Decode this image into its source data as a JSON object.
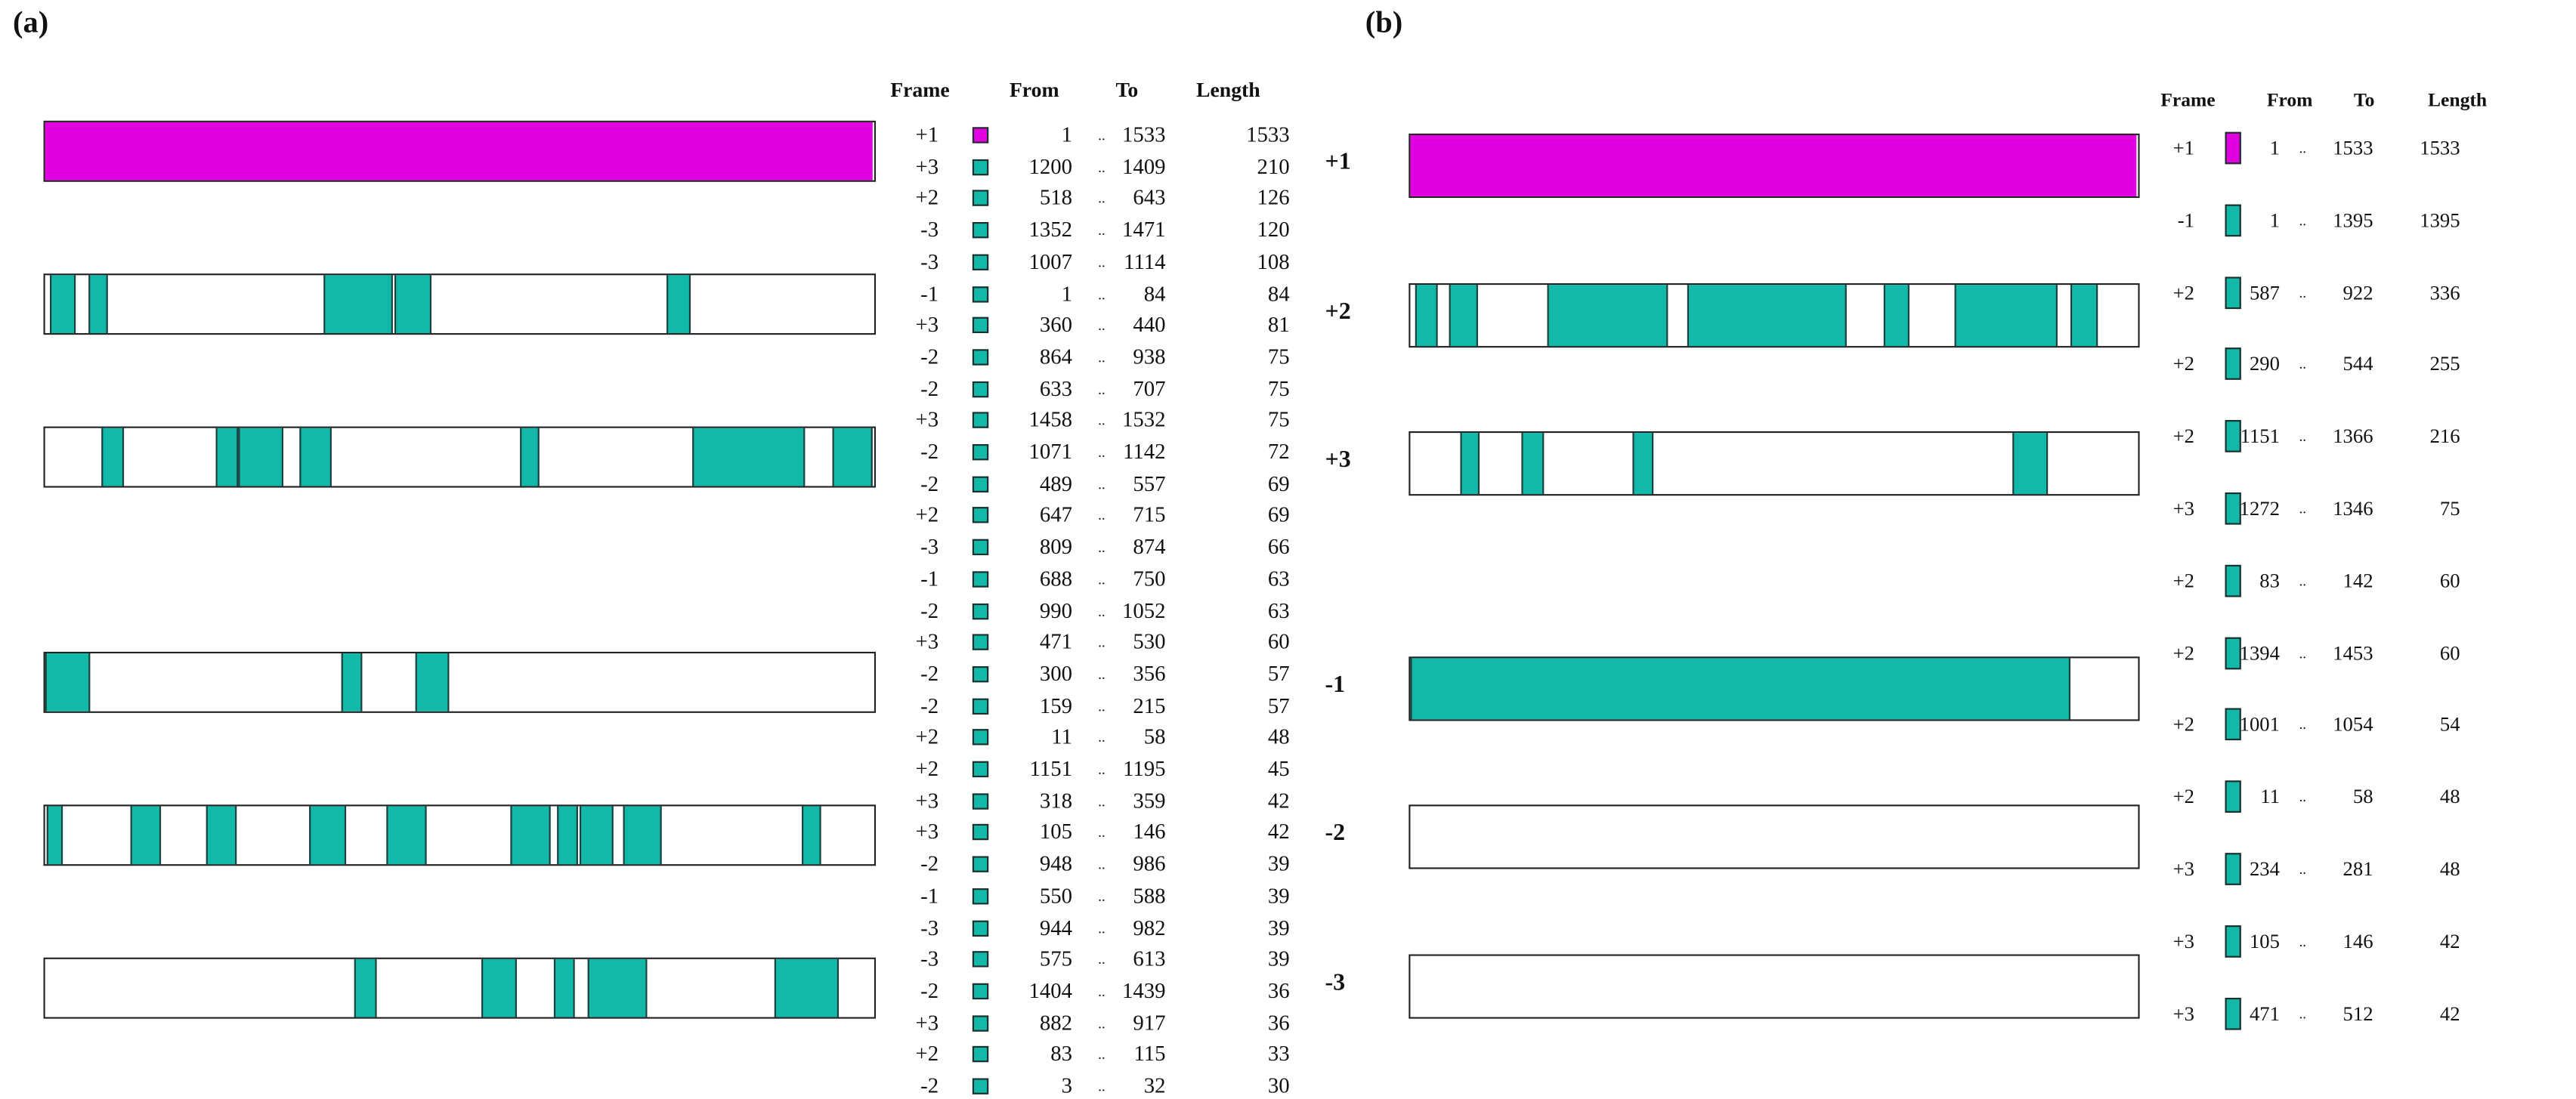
{
  "colors": {
    "main_orf": "#e000e0",
    "orf": "#12b8a8",
    "outline": "#222222"
  },
  "panel_a": {
    "label": "(a)",
    "headers": {
      "frame": "Frame",
      "from": "From",
      "to": "To",
      "length": "Length"
    },
    "rows": [
      {
        "frame": "+1",
        "from": "1",
        "sep": "..",
        "to": "1533",
        "length": "1533",
        "main": true
      },
      {
        "frame": "+3",
        "from": "1200",
        "sep": "..",
        "to": "1409",
        "length": "210"
      },
      {
        "frame": "+2",
        "from": "518",
        "sep": "..",
        "to": "643",
        "length": "126"
      },
      {
        "frame": "-3",
        "from": "1352",
        "sep": "..",
        "to": "1471",
        "length": "120"
      },
      {
        "frame": "-3",
        "from": "1007",
        "sep": "..",
        "to": "1114",
        "length": "108"
      },
      {
        "frame": "-1",
        "from": "1",
        "sep": "..",
        "to": "84",
        "length": "84"
      },
      {
        "frame": "+3",
        "from": "360",
        "sep": "..",
        "to": "440",
        "length": "81"
      },
      {
        "frame": "-2",
        "from": "864",
        "sep": "..",
        "to": "938",
        "length": "75"
      },
      {
        "frame": "-2",
        "from": "633",
        "sep": "..",
        "to": "707",
        "length": "75"
      },
      {
        "frame": "+3",
        "from": "1458",
        "sep": "..",
        "to": "1532",
        "length": "75"
      },
      {
        "frame": "-2",
        "from": "1071",
        "sep": "..",
        "to": "1142",
        "length": "72"
      },
      {
        "frame": "-2",
        "from": "489",
        "sep": "..",
        "to": "557",
        "length": "69"
      },
      {
        "frame": "+2",
        "from": "647",
        "sep": "..",
        "to": "715",
        "length": "69"
      },
      {
        "frame": "-3",
        "from": "809",
        "sep": "..",
        "to": "874",
        "length": "66"
      },
      {
        "frame": "-1",
        "from": "688",
        "sep": "..",
        "to": "750",
        "length": "63"
      },
      {
        "frame": "-2",
        "from": "990",
        "sep": "..",
        "to": "1052",
        "length": "63"
      },
      {
        "frame": "+3",
        "from": "471",
        "sep": "..",
        "to": "530",
        "length": "60"
      },
      {
        "frame": "-2",
        "from": "300",
        "sep": "..",
        "to": "356",
        "length": "57"
      },
      {
        "frame": "-2",
        "from": "159",
        "sep": "..",
        "to": "215",
        "length": "57"
      },
      {
        "frame": "+2",
        "from": "11",
        "sep": "..",
        "to": "58",
        "length": "48"
      },
      {
        "frame": "+2",
        "from": "1151",
        "sep": "..",
        "to": "1195",
        "length": "45"
      },
      {
        "frame": "+3",
        "from": "318",
        "sep": "..",
        "to": "359",
        "length": "42"
      },
      {
        "frame": "+3",
        "from": "105",
        "sep": "..",
        "to": "146",
        "length": "42"
      },
      {
        "frame": "-2",
        "from": "948",
        "sep": "..",
        "to": "986",
        "length": "39"
      },
      {
        "frame": "-1",
        "from": "550",
        "sep": "..",
        "to": "588",
        "length": "39"
      },
      {
        "frame": "-3",
        "from": "944",
        "sep": "..",
        "to": "982",
        "length": "39"
      },
      {
        "frame": "-3",
        "from": "575",
        "sep": "..",
        "to": "613",
        "length": "39"
      },
      {
        "frame": "-2",
        "from": "1404",
        "sep": "..",
        "to": "1439",
        "length": "36"
      },
      {
        "frame": "+3",
        "from": "882",
        "sep": "..",
        "to": "917",
        "length": "36"
      },
      {
        "frame": "+2",
        "from": "83",
        "sep": "..",
        "to": "115",
        "length": "33"
      },
      {
        "frame": "-2",
        "from": "3",
        "sep": "..",
        "to": "32",
        "length": "30"
      }
    ]
  },
  "panel_b": {
    "label": "(b)",
    "track_labels": [
      "+1",
      "+2",
      "+3",
      "-1",
      "-2",
      "-3"
    ],
    "headers": {
      "frame": "Frame",
      "from": "From",
      "to": "To",
      "length": "Length"
    },
    "rows": [
      {
        "frame": "+1",
        "from": "1",
        "sep": "..",
        "to": "1533",
        "length": "1533",
        "main": true
      },
      {
        "frame": "-1",
        "from": "1",
        "sep": "..",
        "to": "1395",
        "length": "1395"
      },
      {
        "frame": "+2",
        "from": "587",
        "sep": "..",
        "to": "922",
        "length": "336"
      },
      {
        "frame": "+2",
        "from": "290",
        "sep": "..",
        "to": "544",
        "length": "255"
      },
      {
        "frame": "+2",
        "from": "1151",
        "sep": "..",
        "to": "1366",
        "length": "216"
      },
      {
        "frame": "+3",
        "from": "1272",
        "sep": "..",
        "to": "1346",
        "length": "75"
      },
      {
        "frame": "+2",
        "from": "83",
        "sep": "..",
        "to": "142",
        "length": "60"
      },
      {
        "frame": "+2",
        "from": "1394",
        "sep": "..",
        "to": "1453",
        "length": "60"
      },
      {
        "frame": "+2",
        "from": "1001",
        "sep": "..",
        "to": "1054",
        "length": "54"
      },
      {
        "frame": "+2",
        "from": "11",
        "sep": "..",
        "to": "58",
        "length": "48"
      },
      {
        "frame": "+3",
        "from": "234",
        "sep": "..",
        "to": "281",
        "length": "48"
      },
      {
        "frame": "+3",
        "from": "105",
        "sep": "..",
        "to": "146",
        "length": "42"
      },
      {
        "frame": "+3",
        "from": "471",
        "sep": "..",
        "to": "512",
        "length": "42"
      }
    ]
  }
}
